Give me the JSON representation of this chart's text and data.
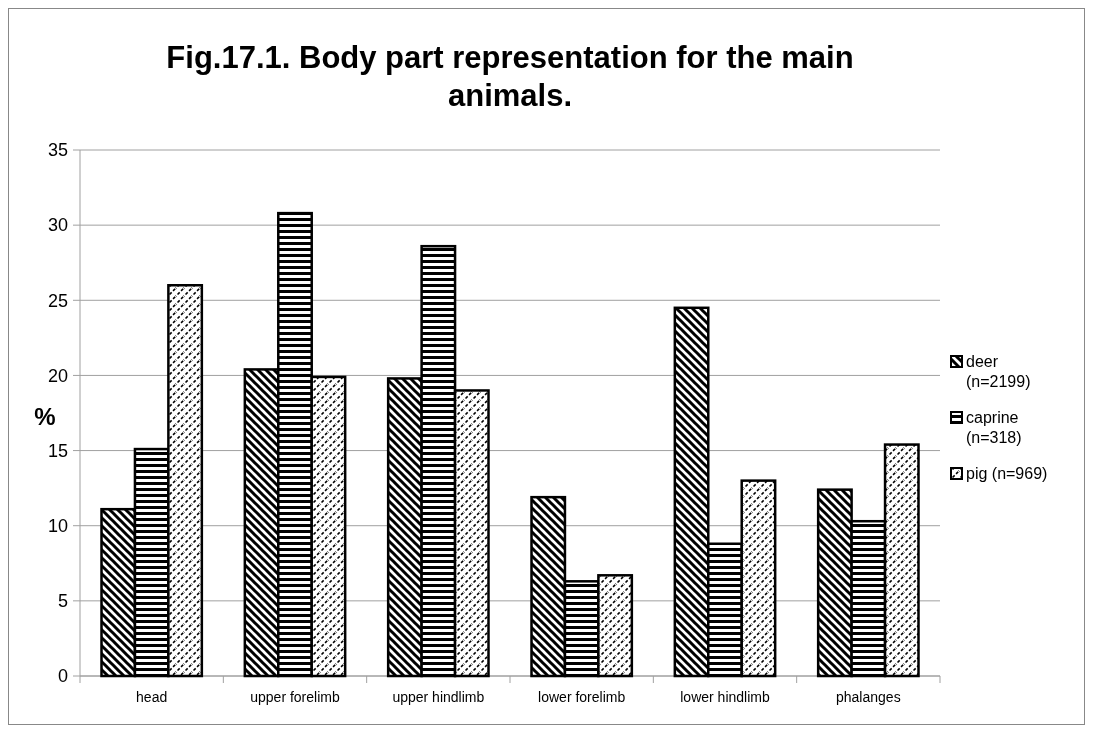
{
  "chart_data": {
    "type": "bar",
    "title": "Fig.17.1. Body part representation for the main animals.",
    "ylabel": "%",
    "categories": [
      "head",
      "upper forelimb",
      "upper hindlimb",
      "lower forelimb",
      "lower hindlimb",
      "phalanges"
    ],
    "series": [
      {
        "name": "deer (n=2199)",
        "color": "#000000",
        "values": [
          11.1,
          20.4,
          19.8,
          11.9,
          24.5,
          12.4
        ]
      },
      {
        "name": "caprine (n=318)",
        "color": "#000000",
        "values": [
          15.1,
          30.8,
          28.6,
          6.3,
          8.8,
          10.3
        ]
      },
      {
        "name": "pig (n=969)",
        "color": "#000000",
        "values": [
          26.0,
          19.9,
          19.0,
          6.7,
          13.0,
          15.4
        ]
      }
    ],
    "ylim": [
      0,
      35
    ],
    "yticks": [
      0,
      5,
      10,
      15,
      20,
      25,
      30,
      35
    ],
    "grid": "y",
    "legend": "right"
  }
}
